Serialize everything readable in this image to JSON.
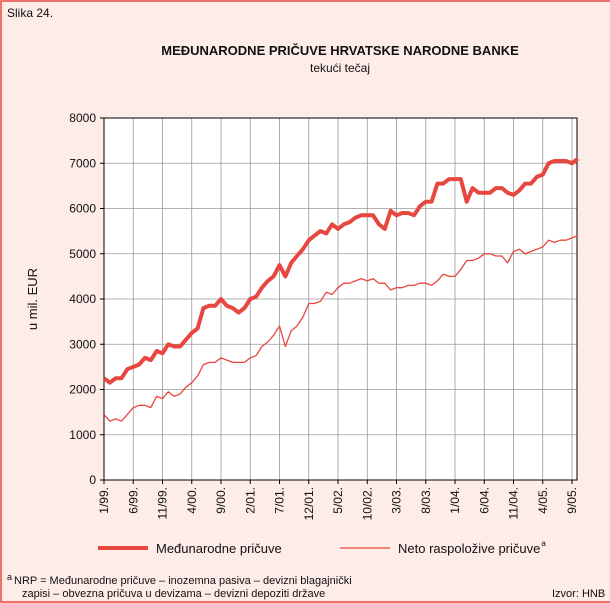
{
  "figure_label": "Slika 24.",
  "chart_data": {
    "type": "line",
    "title": "MEĐUNARODNE PRIČUVE HRVATSKE NARODNE BANKE",
    "subtitle": "tekući tečaj",
    "y_label": "u mil. EUR",
    "categories": [
      "1/99.",
      null,
      null,
      null,
      null,
      "6/99.",
      null,
      null,
      null,
      null,
      "11/99.",
      null,
      null,
      null,
      null,
      "4/00.",
      null,
      null,
      null,
      null,
      "9/00.",
      null,
      null,
      null,
      null,
      "2/01.",
      null,
      null,
      null,
      null,
      "7/01.",
      null,
      null,
      null,
      null,
      "12/01.",
      null,
      null,
      null,
      null,
      "5/02.",
      null,
      null,
      null,
      null,
      "10/02.",
      null,
      null,
      null,
      null,
      "3/03.",
      null,
      null,
      null,
      null,
      "8/03.",
      null,
      null,
      null,
      null,
      "1/04.",
      null,
      null,
      null,
      null,
      "6/04.",
      null,
      null,
      null,
      null,
      "11/04.",
      null,
      null,
      null,
      null,
      "4/05.",
      null,
      null,
      null,
      null,
      "9/05.",
      null
    ],
    "series": [
      {
        "name": "Međunarodne pričuve",
        "color": "#e8473f",
        "width": 4,
        "values": [
          2250,
          2150,
          2250,
          2250,
          2450,
          2500,
          2550,
          2700,
          2650,
          2850,
          2800,
          3000,
          2950,
          2950,
          3100,
          3250,
          3350,
          3800,
          3850,
          3850,
          4000,
          3850,
          3800,
          3700,
          3800,
          4000,
          4050,
          4250,
          4400,
          4500,
          4750,
          4500,
          4800,
          4950,
          5100,
          5300,
          5400,
          5500,
          5450,
          5650,
          5550,
          5650,
          5700,
          5800,
          5850,
          5850,
          5850,
          5650,
          5550,
          5950,
          5850,
          5900,
          5900,
          5850,
          6050,
          6150,
          6150,
          6550,
          6550,
          6650,
          6650,
          6650,
          6150,
          6450,
          6350,
          6350,
          6350,
          6450,
          6450,
          6350,
          6300,
          6400,
          6550,
          6550,
          6700,
          6750,
          7000,
          7050,
          7050,
          7050,
          7000,
          7100
        ]
      },
      {
        "name": "Neto raspoložive pričuve",
        "color": "#e8473f",
        "width": 1.3,
        "marker": "a",
        "values": [
          1450,
          1300,
          1350,
          1300,
          1450,
          1600,
          1650,
          1650,
          1600,
          1850,
          1800,
          1950,
          1850,
          1900,
          2050,
          2150,
          2300,
          2550,
          2600,
          2600,
          2700,
          2650,
          2600,
          2600,
          2600,
          2700,
          2750,
          2950,
          3050,
          3200,
          3400,
          2950,
          3300,
          3400,
          3600,
          3900,
          3900,
          3950,
          4150,
          4100,
          4250,
          4350,
          4350,
          4400,
          4450,
          4400,
          4450,
          4350,
          4350,
          4200,
          4250,
          4250,
          4300,
          4300,
          4350,
          4350,
          4300,
          4400,
          4550,
          4500,
          4500,
          4650,
          4850,
          4850,
          4900,
          5000,
          5000,
          4950,
          4950,
          4800,
          5050,
          5100,
          5000,
          5050,
          5100,
          5150,
          5300,
          5250,
          5300,
          5300,
          5350,
          5400
        ]
      }
    ],
    "ylim": [
      0,
      8000
    ],
    "yticks": [
      0,
      1000,
      2000,
      3000,
      4000,
      5000,
      6000,
      7000,
      8000
    ],
    "grid": true
  },
  "footnote": {
    "marker": "a",
    "lines": [
      "NRP = Međunarodne pričuve – inozemna pasiva – devizni blagajnički",
      "zapisi – obvezna pričuva u devizama – devizni depoziti države"
    ]
  },
  "source": "Izvor: HNB"
}
